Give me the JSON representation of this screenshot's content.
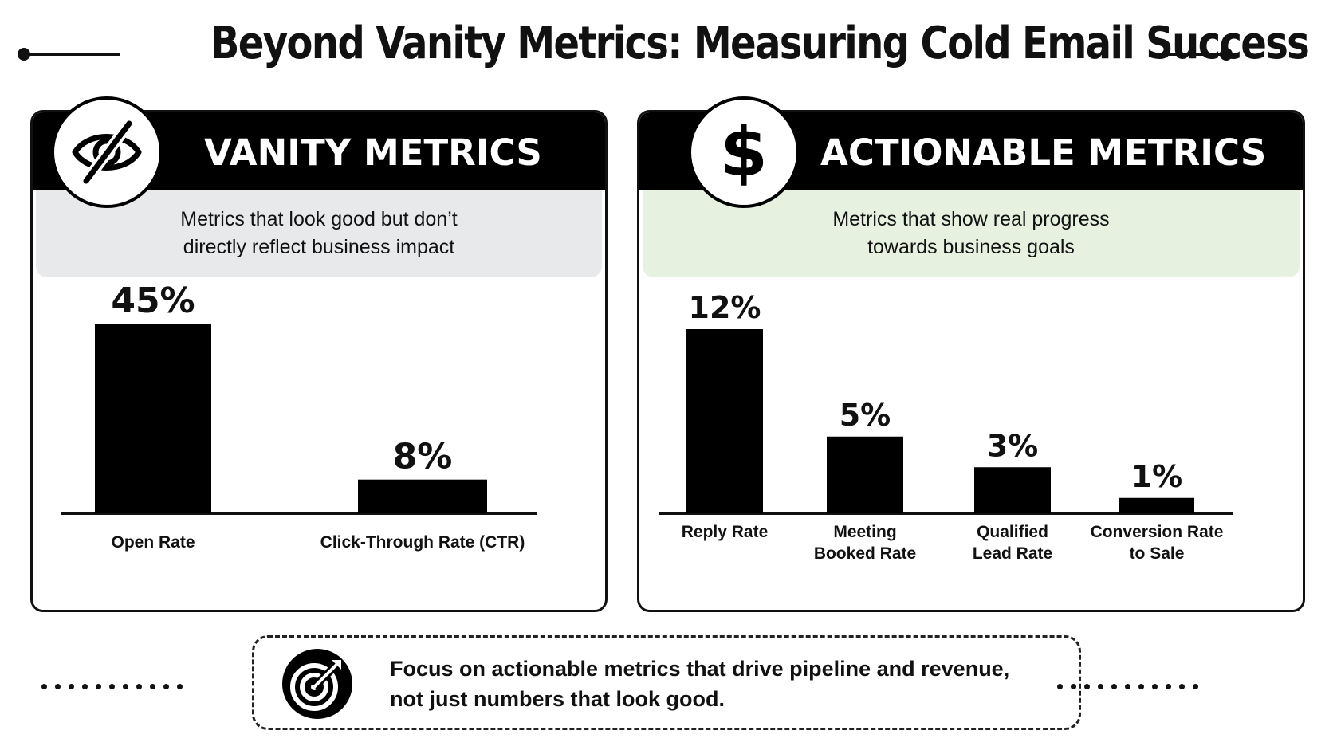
{
  "title": "Beyond Vanity Metrics: Measuring Cold Email Success",
  "panels": {
    "vanity": {
      "heading": "VANITY METRICS",
      "description_line1": "Metrics that look good but don’t",
      "description_line2": "directly reflect business impact",
      "icon": "eye-slash-icon"
    },
    "actionable": {
      "heading": "ACTIONABLE METRICS",
      "description_line1": "Metrics that show real progress",
      "description_line2": "towards business goals",
      "icon": "dollar-icon"
    }
  },
  "chart_data": [
    {
      "type": "bar",
      "title": "VANITY METRICS",
      "categories": [
        "Open Rate",
        "Click-Through Rate (CTR)"
      ],
      "values": [
        45,
        8
      ],
      "value_labels": [
        "45%",
        "8%"
      ],
      "unit": "%",
      "ylim": [
        0,
        45
      ],
      "grid": false
    },
    {
      "type": "bar",
      "title": "ACTIONABLE METRICS",
      "categories": [
        [
          "Reply Rate"
        ],
        [
          "Meeting",
          "Booked Rate"
        ],
        [
          "Qualified",
          "Lead Rate"
        ],
        [
          "Conversion Rate",
          "to Sale"
        ]
      ],
      "values": [
        12,
        5,
        3,
        1
      ],
      "value_labels": [
        "12%",
        "5%",
        "3%",
        "1%"
      ],
      "unit": "%",
      "ylim": [
        0,
        12
      ],
      "grid": false
    }
  ],
  "footer": {
    "line1": "Focus on actionable metrics that drive pipeline and revenue,",
    "line2": "not just numbers that look good.",
    "icon": "target-arrow-icon"
  },
  "colors": {
    "bar": "#000000",
    "header": "#000000",
    "vanity_sub_bg": "#e8e9ea",
    "actionable_sub_bg": "#e6f2df"
  }
}
